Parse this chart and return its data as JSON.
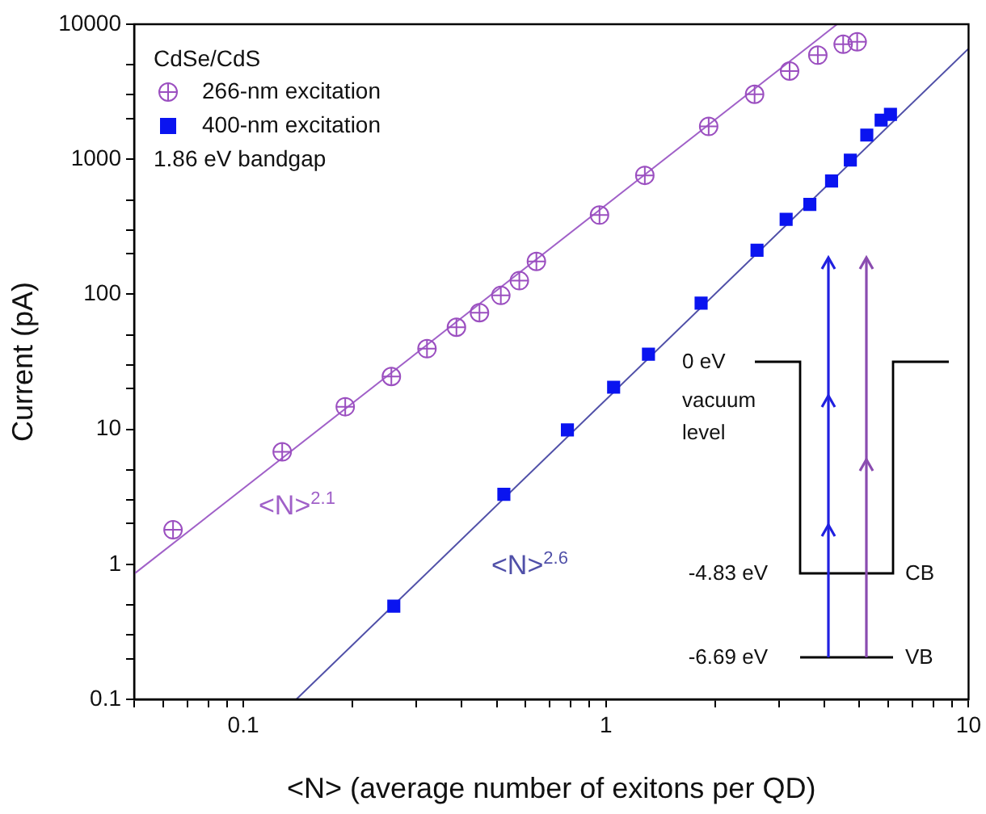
{
  "chart_data": {
    "type": "scatter",
    "log": "xy",
    "xlabel": "<N> (average number of exitons per QD)",
    "ylabel": "Current (pA)",
    "legend": "top left",
    "legend_title": "CdSe/CdS",
    "xlim": [
      0.05,
      10
    ],
    "ylim": [
      0.1,
      10000
    ],
    "xticks": [
      {
        "value": 0.05,
        "label": null
      },
      {
        "value": 0.06,
        "label": null
      },
      {
        "value": 0.07,
        "label": null
      },
      {
        "value": 0.08,
        "label": null
      },
      {
        "value": 0.09,
        "label": null
      },
      0.1,
      {
        "value": 0.2,
        "label": null
      },
      {
        "value": 0.3,
        "label": null
      },
      {
        "value": 0.4,
        "label": null
      },
      {
        "value": 0.5,
        "label": null
      },
      {
        "value": 0.6,
        "label": null
      },
      {
        "value": 0.7,
        "label": null
      },
      {
        "value": 0.8,
        "label": null
      },
      {
        "value": 0.9,
        "label": null
      },
      1,
      {
        "value": 2,
        "label": null
      },
      {
        "value": 3,
        "label": null
      },
      {
        "value": 4,
        "label": null
      },
      {
        "value": 5,
        "label": null
      },
      {
        "value": 6,
        "label": null
      },
      {
        "value": 7,
        "label": null
      },
      {
        "value": 8,
        "label": null
      },
      {
        "value": 9,
        "label": null
      },
      10
    ],
    "yticks": [
      0.1,
      {
        "value": 0.2,
        "label": null
      },
      {
        "value": 0.3,
        "label": null
      },
      {
        "value": 0.5,
        "label": null
      },
      1,
      {
        "value": 2,
        "label": null
      },
      {
        "value": 3,
        "label": null
      },
      {
        "value": 5,
        "label": null
      },
      10,
      {
        "value": 20,
        "label": null
      },
      {
        "value": 30,
        "label": null
      },
      {
        "value": 50,
        "label": null
      },
      100,
      {
        "value": 200,
        "label": null
      },
      {
        "value": 300,
        "label": null
      },
      {
        "value": 500,
        "label": null
      },
      1000,
      {
        "value": 2000,
        "label": null
      },
      {
        "value": 3000,
        "label": null
      },
      {
        "value": 5000,
        "label": null
      },
      10000
    ],
    "series": [
      {
        "type": "scatter",
        "name": "266-nm excitation",
        "color": "#9b4fc0",
        "marker": "circle",
        "x": [
          0.064,
          0.128,
          0.191,
          0.256,
          0.321,
          0.387,
          0.448,
          0.513,
          0.577,
          0.643,
          0.96,
          1.28,
          1.92,
          2.57,
          3.21,
          3.84,
          4.51,
          4.93
        ],
        "values": [
          1.8,
          6.8,
          14.7,
          24.6,
          39.5,
          57,
          73,
          98,
          126,
          175,
          386,
          760,
          1750,
          3030,
          4500,
          5900,
          7100,
          7400
        ]
      },
      {
        "type": "scatter",
        "name": "400-nm excitation",
        "color": "#0a14f0",
        "marker": "square",
        "x": [
          0.26,
          0.523,
          0.783,
          1.05,
          1.31,
          1.83,
          2.61,
          3.14,
          3.65,
          4.19,
          4.72,
          5.24,
          5.74,
          6.09
        ],
        "values": [
          0.49,
          3.3,
          9.9,
          20.5,
          36,
          86,
          212,
          359,
          463,
          690,
          985,
          1510,
          1950,
          2150
        ]
      },
      {
        "type": "line",
        "color": "#a060c8",
        "x": [
          0.05,
          4.34
        ],
        "values": [
          0.85,
          10000
        ]
      },
      {
        "type": "line",
        "color": "#5050a8",
        "x": [
          0.14,
          10
        ],
        "values": [
          0.1,
          6600
        ]
      }
    ],
    "annotations": [
      "1.86 eV bandgap",
      "<N>$^{2.1}$",
      "<N>$^{2.6}$",
      "0 eV",
      "vacuum level",
      "-4.83 eV",
      "CB",
      "-6.69 eV",
      "VB"
    ]
  }
}
